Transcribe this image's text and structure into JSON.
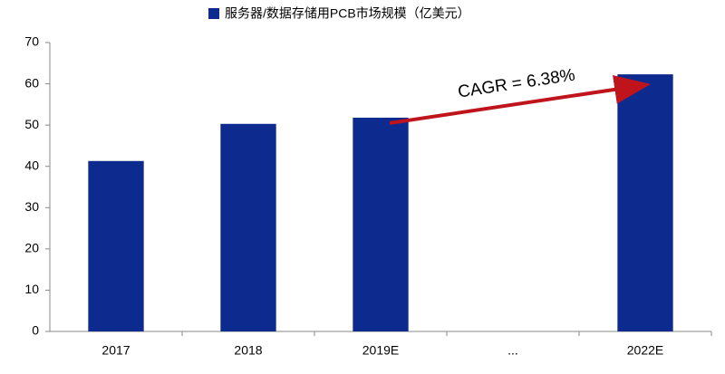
{
  "chart_data": {
    "type": "bar",
    "legend_label": "服务器/数据存储用PCB市场规模（亿美元）",
    "annotation": "CAGR = 6.38%",
    "categories": [
      "2017",
      "2018",
      "2019E",
      "...",
      "2022E"
    ],
    "values": [
      41.3,
      50.3,
      51.8,
      null,
      62.3
    ],
    "color": "#0d2a8e",
    "ylim": [
      0,
      70
    ],
    "yticks": [
      0,
      10,
      20,
      30,
      40,
      50,
      60,
      70
    ],
    "grid": false
  }
}
